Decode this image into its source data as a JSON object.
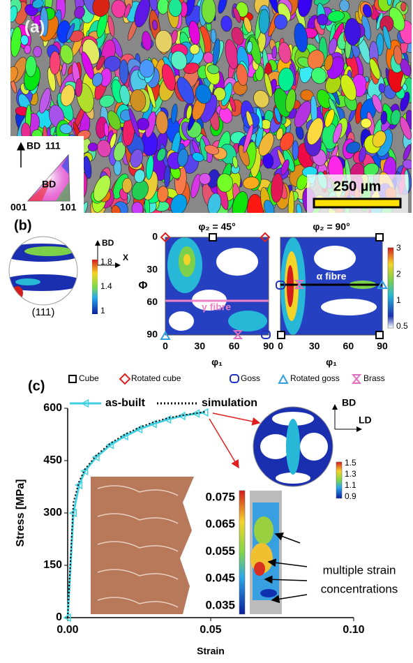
{
  "panel_a": {
    "label": "(a)",
    "ipf": {
      "axis": "BD",
      "center": "BD",
      "top": "111",
      "left": "001",
      "right": "101"
    },
    "scale_bar": "250 µm"
  },
  "panel_b": {
    "label": "(b)",
    "pole_figure": {
      "label": "(111)",
      "axis_up": "BD",
      "axis_right": "X",
      "colorbar_ticks": [
        1.8,
        1.4,
        1
      ]
    },
    "odf": {
      "sections": [
        "φ₂ = 45°",
        "φ₂ = 90°"
      ],
      "y_label": "Φ",
      "x_label": "φ₁",
      "y_ticks": [
        0,
        30,
        60,
        90
      ],
      "x_ticks": [
        0,
        30,
        60,
        90
      ],
      "colorbar_ticks": [
        3,
        2,
        1,
        0.5
      ],
      "alpha_fibre": "α fibre",
      "gamma_fibre": "γ fibre"
    },
    "legend": [
      "Cube",
      "Rotated cube",
      "Goss",
      "Rotated goss",
      "Brass"
    ]
  },
  "panel_c": {
    "label": "(c)",
    "pole_figure": {
      "axis_up": "BD",
      "axis_right": "LD",
      "colorbar_ticks": [
        1.5,
        1.3,
        1.1,
        0.9
      ]
    },
    "strain_colorbar_ticks": [
      0.075,
      0.065,
      0.055,
      0.045,
      0.035
    ],
    "annotation": [
      "multiple strain",
      "concentrations"
    ]
  },
  "chart_data": {
    "type": "line",
    "xlabel": "Strain",
    "ylabel": "Stress [MPa]",
    "x": [
      0,
      0.002,
      0.004,
      0.006,
      0.01,
      0.015,
      0.02,
      0.025,
      0.03,
      0.035,
      0.04,
      0.045,
      0.048
    ],
    "series": [
      {
        "name": "as-built",
        "color": "#40d0e0",
        "values": [
          0,
          300,
          380,
          420,
          460,
          495,
          520,
          540,
          555,
          568,
          578,
          585,
          588
        ]
      },
      {
        "name": "simulation",
        "color": "#000000",
        "values": [
          0,
          330,
          390,
          425,
          465,
          500,
          525,
          545,
          560,
          572,
          580,
          586,
          590
        ]
      }
    ],
    "xlim": [
      0,
      0.1
    ],
    "xticks": [
      {
        "value": 0,
        "label": "0.00"
      },
      {
        "value": 0.05,
        "label": "0.05"
      },
      {
        "value": 0.1,
        "label": "0.10"
      }
    ],
    "ylim": [
      0,
      600
    ],
    "yticks": [
      0,
      150,
      300,
      450,
      600
    ]
  }
}
